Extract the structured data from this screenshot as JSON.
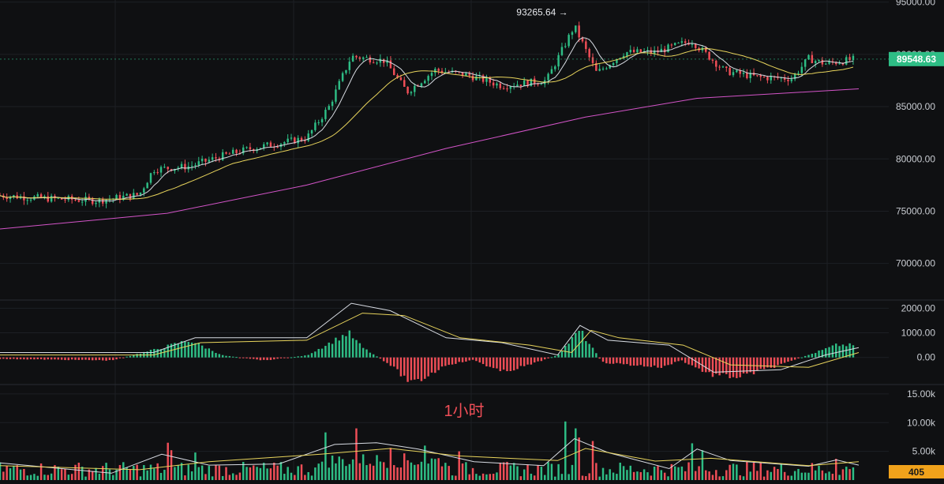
{
  "colors": {
    "background": "#0f1012",
    "grid": "#1d1f24",
    "up": "#2ebd85",
    "down": "#ef4e57",
    "ma_fast": "#d7dbe2",
    "ma_mid": "#e8d45c",
    "ma_slow": "#d354c8",
    "price_badge": "#2ebd85",
    "volume_badge": "#f0a21b"
  },
  "annotations": {
    "peak_label": "93265.64 →",
    "timeframe_label": "1小时",
    "current_price": "89548.63",
    "current_volume": "405"
  },
  "chart_data": [
    {
      "type": "candlestick",
      "panel": "price",
      "yticks": [
        "95000.00",
        "90000.00",
        "85000.00",
        "80000.00",
        "75000.00",
        "70000.00"
      ],
      "ytick_values": [
        95000,
        90000,
        85000,
        80000,
        75000,
        70000
      ],
      "ylim": [
        66500,
        95200
      ],
      "grid": true,
      "peak_value": 93265.64,
      "candle_count": 250,
      "keypoints": [
        [
          0,
          76500
        ],
        [
          18,
          76200
        ],
        [
          35,
          76000
        ],
        [
          50,
          76600
        ],
        [
          55,
          79000
        ],
        [
          68,
          79300
        ],
        [
          80,
          80300
        ],
        [
          90,
          81000
        ],
        [
          110,
          82000
        ],
        [
          118,
          85000
        ],
        [
          126,
          89800
        ],
        [
          138,
          89400
        ],
        [
          146,
          86400
        ],
        [
          156,
          88500
        ],
        [
          168,
          88000
        ],
        [
          180,
          87000
        ],
        [
          196,
          87500
        ],
        [
          206,
          92700
        ],
        [
          214,
          88200
        ],
        [
          224,
          90200
        ],
        [
          235,
          90200
        ],
        [
          248,
          91300
        ],
        [
          260,
          88400
        ],
        [
          272,
          87800
        ],
        [
          284,
          87700
        ],
        [
          290,
          89600
        ],
        [
          296,
          89100
        ],
        [
          308,
          89600
        ]
      ],
      "x_end": 308,
      "series": [
        {
          "name": "MA fast",
          "kind": "ma_fast"
        },
        {
          "name": "MA mid",
          "kind": "ma_mid"
        },
        {
          "name": "MA slow",
          "kind": "ma_slow",
          "points": [
            [
              0,
              73300
            ],
            [
              60,
              74800
            ],
            [
              110,
              77500
            ],
            [
              160,
              81000
            ],
            [
              210,
              84000
            ],
            [
              250,
              85800
            ],
            [
              308,
              86700
            ]
          ]
        }
      ]
    },
    {
      "type": "bar",
      "panel": "macd",
      "yticks": [
        "2000.00",
        "1000.00",
        "0.00"
      ],
      "ytick_values": [
        2000,
        1000,
        0
      ],
      "ylim": [
        -1100,
        2300
      ],
      "hist_keypoints": [
        [
          0,
          -60
        ],
        [
          40,
          -120
        ],
        [
          55,
          300
        ],
        [
          68,
          700
        ],
        [
          80,
          80
        ],
        [
          95,
          -120
        ],
        [
          110,
          80
        ],
        [
          125,
          1000
        ],
        [
          130,
          400
        ],
        [
          140,
          -300
        ],
        [
          148,
          -1100
        ],
        [
          160,
          -300
        ],
        [
          170,
          -100
        ],
        [
          180,
          -600
        ],
        [
          190,
          -300
        ],
        [
          200,
          100
        ],
        [
          208,
          1100
        ],
        [
          216,
          -200
        ],
        [
          226,
          -300
        ],
        [
          238,
          -400
        ],
        [
          244,
          -100
        ],
        [
          255,
          -700
        ],
        [
          265,
          -800
        ],
        [
          280,
          -300
        ],
        [
          290,
          100
        ],
        [
          300,
          500
        ],
        [
          308,
          500
        ]
      ],
      "series": [
        {
          "name": "DIF",
          "kind": "line",
          "points": [
            [
              0,
              200
            ],
            [
              55,
              200
            ],
            [
              70,
              800
            ],
            [
              110,
              800
            ],
            [
              126,
              2200
            ],
            [
              140,
              1900
            ],
            [
              160,
              800
            ],
            [
              180,
              600
            ],
            [
              200,
              100
            ],
            [
              208,
              1300
            ],
            [
              218,
              700
            ],
            [
              240,
              500
            ],
            [
              256,
              -600
            ],
            [
              280,
              -500
            ],
            [
              296,
              100
            ],
            [
              308,
              400
            ]
          ]
        },
        {
          "name": "DEA",
          "kind": "line",
          "points": [
            [
              0,
              100
            ],
            [
              55,
              100
            ],
            [
              72,
              600
            ],
            [
              110,
              700
            ],
            [
              130,
              1800
            ],
            [
              145,
              1700
            ],
            [
              165,
              800
            ],
            [
              190,
              500
            ],
            [
              205,
              200
            ],
            [
              212,
              1100
            ],
            [
              222,
              800
            ],
            [
              245,
              500
            ],
            [
              262,
              -300
            ],
            [
              290,
              -400
            ],
            [
              308,
              200
            ]
          ]
        }
      ]
    },
    {
      "type": "bar",
      "panel": "volume",
      "yticks": [
        "15.00k",
        "10.00k",
        "5.00k"
      ],
      "ytick_values": [
        15000,
        10000,
        5000
      ],
      "ylim": [
        0,
        16500
      ],
      "spikes": [
        [
          60,
          6500
        ],
        [
          61,
          5200
        ],
        [
          70,
          4800
        ],
        [
          117,
          8300
        ],
        [
          128,
          9000
        ],
        [
          140,
          5600
        ],
        [
          148,
          10500
        ],
        [
          152,
          6000
        ],
        [
          165,
          5000
        ],
        [
          203,
          10200
        ],
        [
          206,
          9000
        ],
        [
          208,
          7400
        ],
        [
          213,
          6800
        ],
        [
          248,
          6400
        ],
        [
          252,
          5200
        ],
        [
          300,
          3700
        ]
      ],
      "series": [
        {
          "name": "VOL MA fast",
          "kind": "line",
          "points": [
            [
              0,
              3000
            ],
            [
              40,
              1200
            ],
            [
              58,
              4500
            ],
            [
              75,
              2600
            ],
            [
              100,
              2800
            ],
            [
              120,
              6200
            ],
            [
              135,
              6500
            ],
            [
              150,
              5400
            ],
            [
              170,
              3200
            ],
            [
              195,
              2500
            ],
            [
              206,
              7200
            ],
            [
              218,
              4800
            ],
            [
              240,
              2000
            ],
            [
              250,
              5400
            ],
            [
              262,
              3400
            ],
            [
              290,
              2400
            ],
            [
              300,
              3500
            ],
            [
              308,
              2600
            ]
          ]
        },
        {
          "name": "VOL MA slow",
          "kind": "line",
          "points": [
            [
              0,
              2500
            ],
            [
              50,
              1800
            ],
            [
              75,
              3200
            ],
            [
              115,
              4500
            ],
            [
              140,
              5500
            ],
            [
              165,
              4200
            ],
            [
              200,
              3400
            ],
            [
              210,
              5500
            ],
            [
              235,
              3300
            ],
            [
              255,
              3800
            ],
            [
              290,
              2500
            ],
            [
              308,
              3200
            ]
          ]
        }
      ]
    }
  ]
}
